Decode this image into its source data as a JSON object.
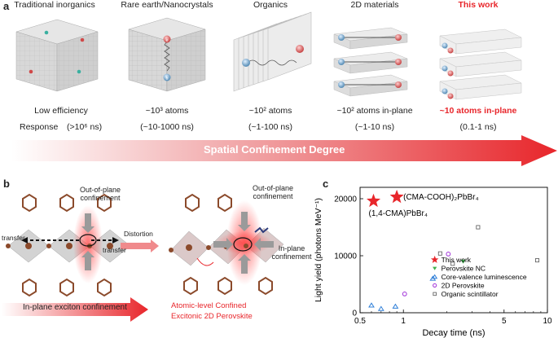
{
  "panel_a": {
    "letter": "a",
    "columns": [
      {
        "title": "Traditional inorganics",
        "line1": "Low efficiency",
        "line2": "(>10⁶ ns)"
      },
      {
        "title": "Rare earth/Nanocrystals",
        "line1": "~10³ atoms",
        "line2": "(~10-1000 ns)"
      },
      {
        "title": "Organics",
        "line1": "~10² atoms",
        "line2": "(~1-100 ns)"
      },
      {
        "title": "2D materials",
        "line1": "~10² atoms in-plane",
        "line2": "(~1-10 ns)"
      },
      {
        "title": "This work",
        "line1": "~10 atoms in-plane",
        "line2": "(0.1-1 ns)"
      }
    ],
    "response_label": "Response",
    "arrow_label": "Spatial Confinement Degree",
    "markers": {
      "e": "e",
      "h": "h"
    }
  },
  "panel_b": {
    "letter": "b",
    "out_of_plane_left": "Out-of-plane\nconfinement",
    "out_of_plane_right": "Out-of-plane\nconfinement",
    "transfer_left": "transfer",
    "transfer_right": "transfer",
    "distortion": "Distortion",
    "in_plane": "In-plane\nconfinement",
    "bottom_arrow": "In-plane exciton confinement",
    "red_caption_1": "Atomic-level Confined",
    "red_caption_2": "Excitonic 2D Perovskite"
  },
  "panel_c": {
    "letter": "c",
    "annotation_1": "(CMA-COOH)₂PbBr₄",
    "annotation_2": "(1,4-CMA)PbBr₄"
  },
  "chart_data": {
    "type": "scatter",
    "xscale": "log",
    "xlabel": "Decay time (ns)",
    "ylabel": "Light yield (photons MeV⁻¹)",
    "xlim": [
      0.5,
      10
    ],
    "ylim": [
      0,
      22000
    ],
    "xticks": [
      0.5,
      1,
      5,
      10
    ],
    "xtick_labels": [
      "0.5",
      "1",
      "5",
      "10"
    ],
    "yticks": [
      0,
      10000,
      20000
    ],
    "ytick_labels": [
      "0",
      "10000",
      "20000"
    ],
    "series": [
      {
        "name": "This work",
        "marker": "star",
        "color": "#e8262b",
        "points": [
          [
            0.62,
            19600
          ],
          [
            0.9,
            20300
          ]
        ]
      },
      {
        "name": "Perovskite NC",
        "marker": "triangle-down",
        "color": "#3fb24d",
        "points": [
          [
            2.6,
            9000
          ]
        ]
      },
      {
        "name": "Core-valence luminescence",
        "marker": "triangle-up",
        "color": "#2f7fd8",
        "points": [
          [
            0.6,
            1300
          ],
          [
            0.7,
            700
          ],
          [
            0.88,
            1100
          ],
          [
            1.6,
            6000
          ]
        ]
      },
      {
        "name": "2D Perovskite",
        "marker": "circle",
        "color": "#a030d8",
        "points": [
          [
            1.02,
            3300
          ],
          [
            2.05,
            10300
          ]
        ]
      },
      {
        "name": "Organic scintillator",
        "marker": "square",
        "color": "#555555",
        "points": [
          [
            1.8,
            10400
          ],
          [
            2.2,
            8600
          ],
          [
            3.3,
            15000
          ],
          [
            8.5,
            9200
          ]
        ]
      }
    ]
  }
}
